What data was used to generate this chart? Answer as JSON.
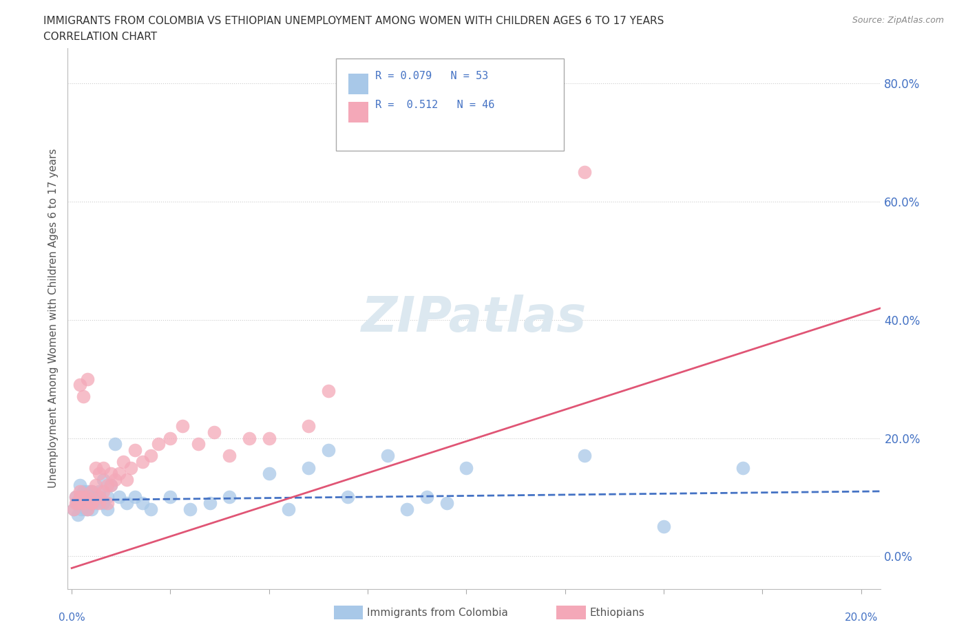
{
  "title_line1": "IMMIGRANTS FROM COLOMBIA VS ETHIOPIAN UNEMPLOYMENT AMONG WOMEN WITH CHILDREN AGES 6 TO 17 YEARS",
  "title_line2": "CORRELATION CHART",
  "source": "Source: ZipAtlas.com",
  "ylabel_label": "Unemployment Among Women with Children Ages 6 to 17 years",
  "xlim": [
    -0.001,
    0.205
  ],
  "ylim": [
    -0.055,
    0.86
  ],
  "ytick_vals": [
    0.0,
    0.2,
    0.4,
    0.6,
    0.8
  ],
  "ytick_labels": [
    "0.0%",
    "20.0%",
    "40.0%",
    "60.0%",
    "80.0%"
  ],
  "xtick_vals": [
    0.0,
    0.025,
    0.05,
    0.075,
    0.1,
    0.125,
    0.15,
    0.175,
    0.2
  ],
  "colombia_R": 0.079,
  "colombia_N": 53,
  "ethiopia_R": 0.512,
  "ethiopia_N": 46,
  "colombia_dot_color": "#a8c8e8",
  "ethiopia_dot_color": "#f4a8b8",
  "colombia_line_color": "#4472c4",
  "ethiopia_line_color": "#e05575",
  "grid_color": "#cccccc",
  "background_color": "#ffffff",
  "watermark_color": "#dce8f0",
  "colombia_x": [
    0.0005,
    0.001,
    0.0012,
    0.0015,
    0.002,
    0.002,
    0.002,
    0.0025,
    0.003,
    0.003,
    0.003,
    0.003,
    0.0035,
    0.004,
    0.004,
    0.004,
    0.004,
    0.005,
    0.005,
    0.005,
    0.005,
    0.006,
    0.006,
    0.007,
    0.007,
    0.008,
    0.008,
    0.009,
    0.009,
    0.01,
    0.011,
    0.012,
    0.014,
    0.016,
    0.018,
    0.02,
    0.025,
    0.03,
    0.035,
    0.04,
    0.05,
    0.055,
    0.06,
    0.065,
    0.07,
    0.08,
    0.085,
    0.09,
    0.095,
    0.1,
    0.13,
    0.15,
    0.17
  ],
  "colombia_y": [
    0.08,
    0.1,
    0.09,
    0.07,
    0.09,
    0.1,
    0.12,
    0.08,
    0.09,
    0.1,
    0.11,
    0.09,
    0.08,
    0.1,
    0.09,
    0.11,
    0.08,
    0.09,
    0.1,
    0.08,
    0.11,
    0.1,
    0.09,
    0.1,
    0.11,
    0.09,
    0.13,
    0.1,
    0.08,
    0.12,
    0.19,
    0.1,
    0.09,
    0.1,
    0.09,
    0.08,
    0.1,
    0.08,
    0.09,
    0.1,
    0.14,
    0.08,
    0.15,
    0.18,
    0.1,
    0.17,
    0.08,
    0.1,
    0.09,
    0.15,
    0.17,
    0.05,
    0.15
  ],
  "ethiopia_x": [
    0.0005,
    0.001,
    0.001,
    0.0015,
    0.002,
    0.002,
    0.002,
    0.003,
    0.003,
    0.003,
    0.004,
    0.004,
    0.004,
    0.005,
    0.005,
    0.005,
    0.006,
    0.006,
    0.007,
    0.007,
    0.007,
    0.008,
    0.008,
    0.009,
    0.009,
    0.01,
    0.01,
    0.011,
    0.012,
    0.013,
    0.014,
    0.015,
    0.016,
    0.018,
    0.02,
    0.022,
    0.025,
    0.028,
    0.032,
    0.036,
    0.04,
    0.045,
    0.05,
    0.06,
    0.065,
    0.13
  ],
  "ethiopia_y": [
    0.08,
    0.09,
    0.1,
    0.09,
    0.1,
    0.29,
    0.11,
    0.09,
    0.27,
    0.1,
    0.08,
    0.3,
    0.1,
    0.09,
    0.11,
    0.09,
    0.12,
    0.15,
    0.1,
    0.14,
    0.09,
    0.11,
    0.15,
    0.12,
    0.09,
    0.12,
    0.14,
    0.13,
    0.14,
    0.16,
    0.13,
    0.15,
    0.18,
    0.16,
    0.17,
    0.19,
    0.2,
    0.22,
    0.19,
    0.21,
    0.17,
    0.2,
    0.2,
    0.22,
    0.28,
    0.65
  ],
  "col_line_x": [
    0.0,
    0.205
  ],
  "col_line_y": [
    0.095,
    0.11
  ],
  "eth_line_x": [
    0.0,
    0.205
  ],
  "eth_line_y": [
    -0.02,
    0.42
  ]
}
